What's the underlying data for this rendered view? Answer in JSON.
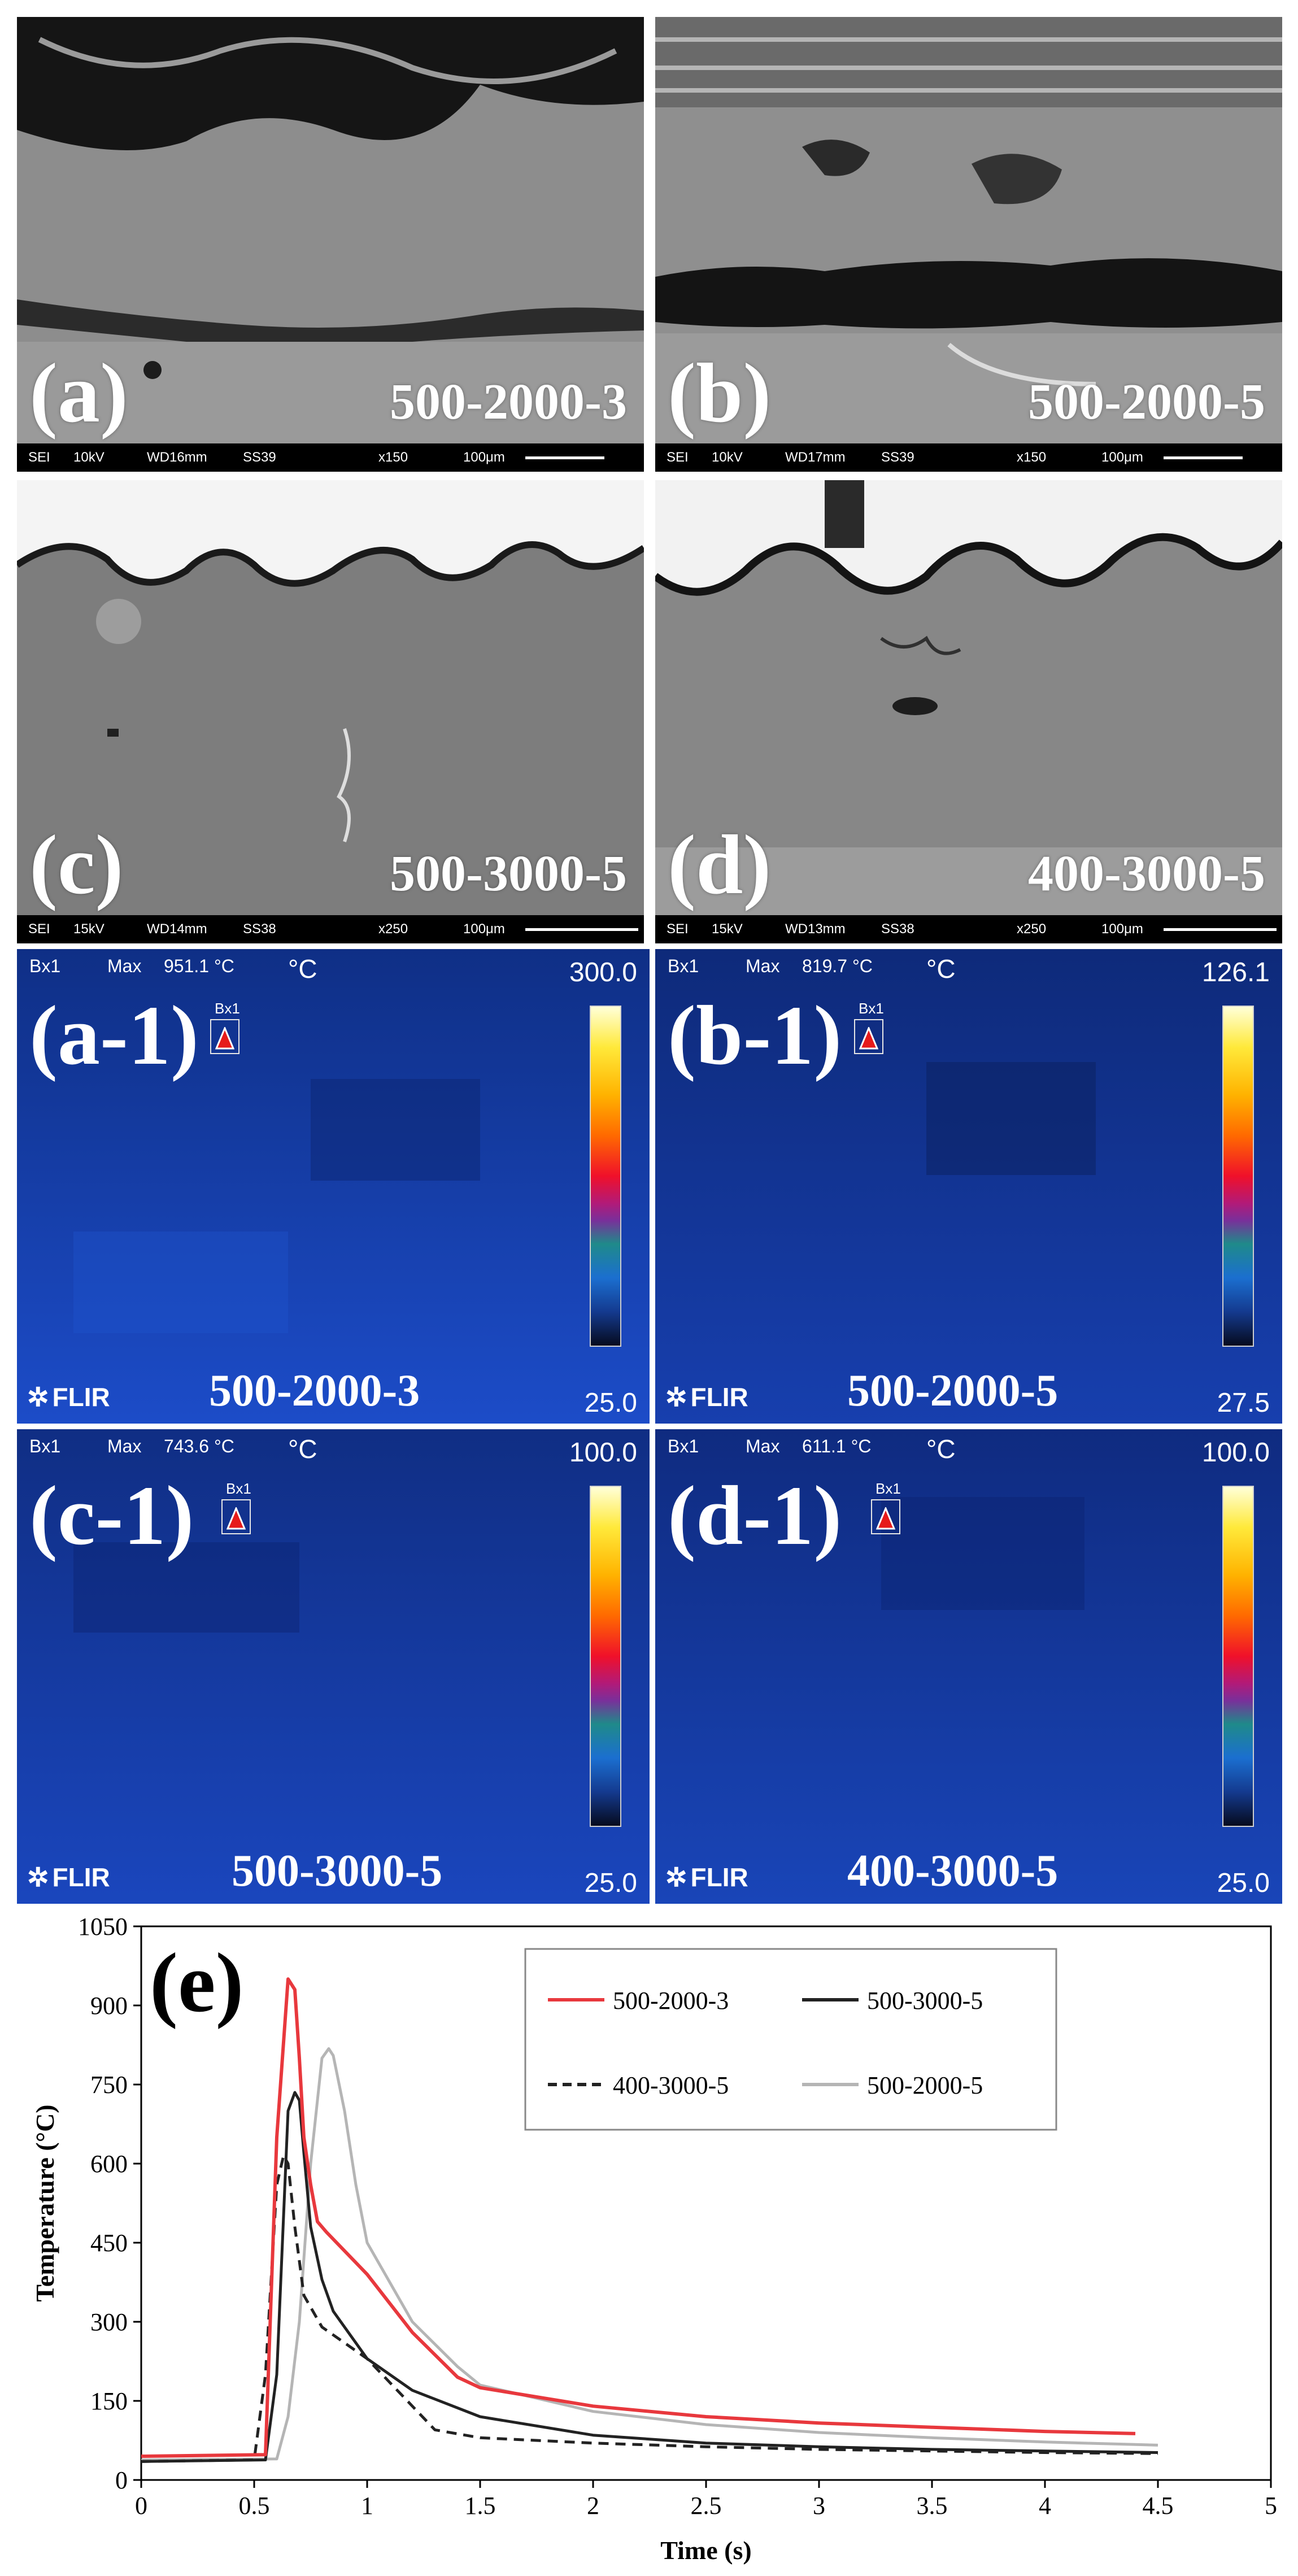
{
  "sem_panels": [
    {
      "label": "(a)",
      "sample": "500-2000-3",
      "info": {
        "mode": "SEI",
        "kv": "10kV",
        "wd": "WD16mm",
        "ss": "SS39",
        "mag": "x150",
        "scale": "100μm"
      }
    },
    {
      "label": "(b)",
      "sample": "500-2000-5",
      "info": {
        "mode": "SEI",
        "kv": "10kV",
        "wd": "WD17mm",
        "ss": "SS39",
        "mag": "x150",
        "scale": "100μm"
      }
    },
    {
      "label": "(c)",
      "sample": "500-3000-5",
      "info": {
        "mode": "SEI",
        "kv": "15kV",
        "wd": "WD14mm",
        "ss": "SS38",
        "mag": "x250",
        "scale": "100μm"
      }
    },
    {
      "label": "(d)",
      "sample": "400-3000-5",
      "info": {
        "mode": "SEI",
        "kv": "15kV",
        "wd": "WD13mm",
        "ss": "SS38",
        "mag": "x250",
        "scale": "100μm"
      }
    }
  ],
  "thermal_panels": [
    {
      "label": "(a-1)",
      "sample": "500-2000-3",
      "box": "Bx1",
      "max_label": "Max",
      "max_value": "951.1 °C",
      "unit": "°C",
      "scale_max": "300.0",
      "scale_min": "25.0",
      "brand": "FLIR"
    },
    {
      "label": "(b-1)",
      "sample": "500-2000-5",
      "box": "Bx1",
      "max_label": "Max",
      "max_value": "819.7 °C",
      "unit": "°C",
      "scale_max": "126.1",
      "scale_min": "27.5",
      "brand": "FLIR"
    },
    {
      "label": "(c-1)",
      "sample": "500-3000-5",
      "box": "Bx1",
      "max_label": "Max",
      "max_value": "743.6 °C",
      "unit": "°C",
      "scale_max": "100.0",
      "scale_min": "25.0",
      "brand": "FLIR"
    },
    {
      "label": "(d-1)",
      "sample": "400-3000-5",
      "box": "Bx1",
      "max_label": "Max",
      "max_value": "611.1 °C",
      "unit": "°C",
      "scale_max": "100.0",
      "scale_min": "25.0",
      "brand": "FLIR"
    }
  ],
  "colors": {
    "s500_2000_3": "#e8383d",
    "s500_3000_5": "#222222",
    "s400_3000_5": "#222222",
    "s500_2000_5": "#b5b5b5"
  },
  "chart_data": {
    "type": "line",
    "panel_label": "(e)",
    "title": "",
    "xlabel": "Time (s)",
    "ylabel": "Temperature (°C)",
    "xlim": [
      0,
      5
    ],
    "ylim": [
      0,
      1050
    ],
    "x_ticks": [
      "0",
      "0.5",
      "1",
      "1.5",
      "2",
      "2.5",
      "3",
      "3.5",
      "4",
      "4.5",
      "5"
    ],
    "y_ticks": [
      "0",
      "150",
      "300",
      "450",
      "600",
      "750",
      "900",
      "1050"
    ],
    "grid": false,
    "legend_position": "top-right",
    "series": [
      {
        "name": "500-2000-3",
        "style": "solid",
        "color": "#e8383d",
        "x": [
          0,
          0.55,
          0.6,
          0.65,
          0.68,
          0.7,
          0.72,
          0.75,
          0.78,
          0.82,
          1.0,
          1.2,
          1.4,
          1.5,
          2.0,
          2.5,
          3.0,
          3.5,
          4.0,
          4.4
        ],
        "y": [
          45,
          48,
          650,
          950,
          930,
          800,
          650,
          560,
          490,
          470,
          390,
          280,
          195,
          175,
          140,
          120,
          108,
          100,
          92,
          88
        ]
      },
      {
        "name": "500-3000-5",
        "style": "solid",
        "color": "#222222",
        "x": [
          0,
          0.55,
          0.6,
          0.65,
          0.68,
          0.7,
          0.72,
          0.75,
          0.8,
          0.85,
          0.9,
          1.0,
          1.2,
          1.5,
          2.0,
          2.5,
          3.0,
          3.5,
          4.0,
          4.5
        ],
        "y": [
          35,
          38,
          200,
          700,
          735,
          720,
          620,
          480,
          380,
          320,
          290,
          230,
          170,
          120,
          85,
          70,
          63,
          58,
          55,
          52
        ]
      },
      {
        "name": "400-3000-5",
        "style": "dashed",
        "color": "#222222",
        "x": [
          0,
          0.5,
          0.55,
          0.6,
          0.63,
          0.65,
          0.68,
          0.72,
          0.8,
          0.9,
          1.0,
          1.1,
          1.2,
          1.3,
          1.5,
          2.0,
          2.5,
          3.0,
          3.5,
          4.0,
          4.5
        ],
        "y": [
          35,
          38,
          200,
          560,
          615,
          600,
          480,
          350,
          290,
          260,
          230,
          185,
          140,
          95,
          80,
          70,
          63,
          58,
          55,
          52,
          50
        ]
      },
      {
        "name": "500-2000-5",
        "style": "solid",
        "color": "#b5b5b5",
        "x": [
          0,
          0.6,
          0.65,
          0.7,
          0.75,
          0.8,
          0.83,
          0.85,
          0.9,
          0.95,
          1.0,
          1.2,
          1.4,
          1.5,
          2.0,
          2.5,
          3.0,
          3.5,
          4.0,
          4.5
        ],
        "y": [
          38,
          40,
          120,
          300,
          600,
          800,
          818,
          805,
          700,
          560,
          450,
          300,
          215,
          180,
          130,
          105,
          90,
          80,
          72,
          66
        ]
      }
    ]
  }
}
